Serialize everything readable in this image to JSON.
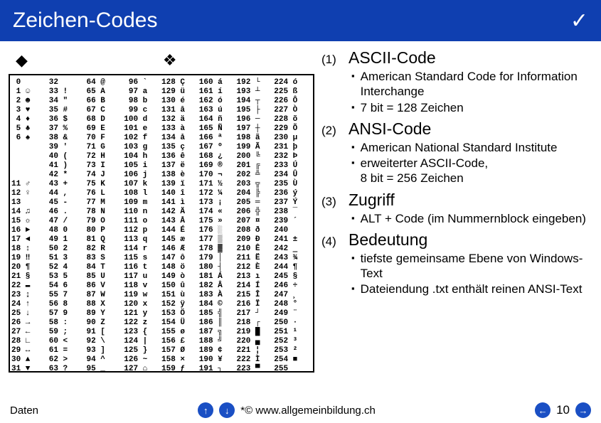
{
  "titlebar": {
    "title": "Zeichen-Codes",
    "check": "✓"
  },
  "left_bullets": {
    "b1": "◆",
    "b2": "❖"
  },
  "ascii": {
    "col0": " 0\n 1 ☺\n 2 ☻\n 3 ♥\n 4 ♦\n 5 ♣\n 6 ♠\n\n\n\n\n11 ♂\n12 ♀\n13\n14 ♫\n15 ☼\n16 ►\n17 ◄\n18 ↕\n19 ‼\n20 ¶\n21 §\n22 ▬\n23 ↨\n24 ↑\n25 ↓\n26 →\n27 ←\n28 ∟\n29 ↔\n30 ▲\n31 ▼",
    "col1": "32  \n33 !\n34 \"\n35 #\n36 $\n37 %\n38 &\n39 '\n40 (\n41 )\n42 *\n43 +\n44 ,\n45 -\n46 .\n47 /\n48 0\n49 1\n50 2\n51 3\n52 4\n53 5\n54 6\n55 7\n56 8\n57 9\n58 :\n59 ;\n60 <\n61 =\n62 >\n63 ?",
    "col2": "64 @\n65 A\n66 B\n67 C\n68 D\n69 E\n70 F\n71 G\n72 H\n73 I\n74 J\n75 K\n76 L\n77 M\n78 N\n79 O\n80 P\n81 Q\n82 R\n83 S\n84 T\n85 U\n86 V\n87 W\n88 X\n89 Y\n90 Z\n91 [\n92 \\\n93 ]\n94 ^\n95 _",
    "col3": " 96 `\n 97 a\n 98 b\n 99 c\n100 d\n101 e\n102 f\n103 g\n104 h\n105 i\n106 j\n107 k\n108 l\n109 m\n110 n\n111 o\n112 p\n113 q\n114 r\n115 s\n116 t\n117 u\n118 v\n119 w\n120 x\n121 y\n122 z\n123 {\n124 |\n125 }\n126 ~\n127 ⌂",
    "col4": "128 Ç\n129 ü\n130 é\n131 â\n132 ä\n133 à\n134 å\n135 ç\n136 ê\n137 ë\n138 è\n139 ï\n140 î\n141 ì\n142 Ä\n143 Å\n144 É\n145 æ\n146 Æ\n147 ô\n148 ö\n149 ò\n150 û\n151 ù\n152 ÿ\n153 Ö\n154 Ü\n155 ø\n156 £\n157 Ø\n158 ×\n159 ƒ",
    "col5": "160 á\n161 í\n162 ó\n163 ú\n164 ñ\n165 Ñ\n166 ª\n167 º\n168 ¿\n169 ®\n170 ¬\n171 ½\n172 ¼\n173 ¡\n174 «\n175 »\n176 ░\n177 ▒\n178 ▓\n179 │\n180 ┤\n181 Á\n182 Â\n183 À\n184 ©\n185 ╣\n186 ║\n187 ╗\n188 ╝\n189 ¢\n190 ¥\n191 ┐",
    "col6": "192 └\n193 ┴\n194 ┬\n195 ├\n196 ─\n197 ┼\n198 ã\n199 Ã\n200 ╚\n201 ╔\n202 ╩\n203 ╦\n204 ╠\n205 ═\n206 ╬\n207 ¤\n208 ð\n209 Ð\n210 Ê\n211 Ë\n212 È\n213 ı\n214 Í\n215 Î\n216 Ï\n217 ┘\n218 ┌\n219 █\n220 ▄\n221 ¦\n222 Ì\n223 ▀",
    "col7": "224 ó\n225 ß\n226 Ô\n227 Ò\n228 õ\n229 Õ\n230 µ\n231 þ\n232 Þ\n233 Ú\n234 Û\n235 Ù\n236 ý\n237 Ý\n238 ¯\n239 ´\n240 ­\n241 ±\n242 ‗\n243 ¾\n244 ¶\n245 §\n246 ÷\n247 ¸\n248 °\n249 ¨\n250 ·\n251 ¹\n252 ³\n253 ²\n254 ■\n255  "
  },
  "list": {
    "items": [
      {
        "idx": "(1)",
        "title": "ASCII-Code",
        "subs": [
          "American Standard Code for Information Interchange",
          "7 bit = 128 Zeichen"
        ]
      },
      {
        "idx": "(2)",
        "title": "ANSI-Code",
        "subs": [
          "American National Standard Institute",
          "erweiterter ASCII-Code,\n8 bit = 256 Zeichen"
        ]
      },
      {
        "idx": "(3)",
        "title": "Zugriff",
        "subs": [
          "ALT + Code (im Nummernblock eingeben)"
        ]
      },
      {
        "idx": "(4)",
        "title": "Bedeutung",
        "subs": [
          "tiefste gemeinsame Ebene von Windows-Text",
          "Dateiendung .txt enthält reinen ANSI-Text"
        ]
      }
    ],
    "sub_mark": "▪"
  },
  "footer": {
    "left": "Daten",
    "center": "*© www.allgemeinbildung.ch",
    "page": "10",
    "nav_up": "↑",
    "nav_down": "↓",
    "nav_prev": "←",
    "nav_next": "→"
  },
  "colors": {
    "titlebar_bg": "#0f3fb0",
    "nav_bg": "#1a4fc4"
  }
}
